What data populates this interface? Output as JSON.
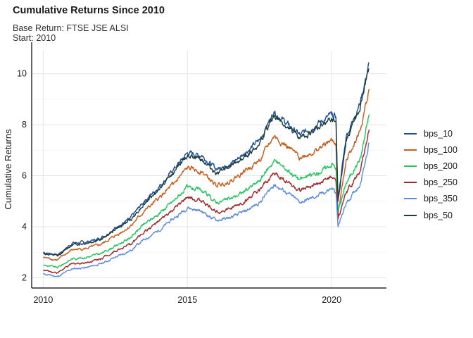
{
  "chart_data": {
    "type": "line",
    "title": "Cumulative Returns Since 2010",
    "subtitle_lines": [
      "Base Return: FTSE JSE ALSI",
      "Start: 2010"
    ],
    "xlabel": "",
    "ylabel": "Cumulative Returns",
    "xlim": [
      2009.6,
      2021.9
    ],
    "ylim": [
      1.6,
      10.9
    ],
    "x_ticks": [
      2010,
      2015,
      2020
    ],
    "y_ticks": [
      2,
      4,
      6,
      8,
      10
    ],
    "grid": true,
    "legend_position": "right",
    "x": [
      2010.0,
      2010.5,
      2011.0,
      2011.5,
      2012.0,
      2012.5,
      2013.0,
      2013.5,
      2014.0,
      2014.5,
      2015.0,
      2015.5,
      2016.0,
      2016.5,
      2017.0,
      2017.5,
      2018.0,
      2018.5,
      2018.9,
      2019.5,
      2020.0,
      2020.15,
      2020.22,
      2020.5,
      2021.0,
      2021.3
    ],
    "series": [
      {
        "name": "bps_10",
        "color": "#1f4e9b",
        "values": [
          3.0,
          2.9,
          3.35,
          3.4,
          3.55,
          3.95,
          4.3,
          5.0,
          5.55,
          6.2,
          6.9,
          6.8,
          6.25,
          6.45,
          6.9,
          7.4,
          8.5,
          8.0,
          7.6,
          8.0,
          8.4,
          8.3,
          5.1,
          7.5,
          8.9,
          10.4
        ]
      },
      {
        "name": "bps_100",
        "color": "#c95a1a",
        "values": [
          2.8,
          2.7,
          3.1,
          3.15,
          3.3,
          3.65,
          4.0,
          4.6,
          5.1,
          5.65,
          6.3,
          6.15,
          5.6,
          5.8,
          6.2,
          6.6,
          7.55,
          7.1,
          6.7,
          7.0,
          7.4,
          7.25,
          4.45,
          6.6,
          7.8,
          9.4
        ]
      },
      {
        "name": "bps_200",
        "color": "#22c55e",
        "values": [
          2.5,
          2.4,
          2.75,
          2.8,
          2.95,
          3.25,
          3.55,
          4.1,
          4.5,
          5.0,
          5.55,
          5.4,
          4.95,
          5.1,
          5.4,
          5.8,
          6.6,
          6.2,
          5.85,
          6.1,
          6.45,
          6.3,
          4.6,
          5.7,
          6.7,
          8.4
        ]
      },
      {
        "name": "bps_250",
        "color": "#a3262a",
        "values": [
          2.3,
          2.2,
          2.55,
          2.6,
          2.75,
          3.05,
          3.3,
          3.8,
          4.2,
          4.65,
          5.15,
          5.0,
          4.6,
          4.7,
          5.0,
          5.4,
          6.1,
          5.75,
          5.4,
          5.65,
          5.95,
          5.8,
          4.3,
          5.3,
          6.2,
          7.8
        ]
      },
      {
        "name": "bps_350",
        "color": "#5b8be0",
        "values": [
          2.15,
          2.05,
          2.35,
          2.4,
          2.55,
          2.8,
          3.05,
          3.5,
          3.85,
          4.3,
          4.75,
          4.6,
          4.25,
          4.35,
          4.6,
          4.95,
          5.65,
          5.3,
          4.95,
          5.2,
          5.5,
          5.35,
          4.0,
          4.9,
          5.7,
          7.3
        ]
      },
      {
        "name": "bps_50",
        "color": "#1e3d3a",
        "values": [
          2.95,
          2.85,
          3.3,
          3.35,
          3.5,
          3.9,
          4.25,
          4.9,
          5.45,
          6.1,
          6.8,
          6.65,
          6.1,
          6.35,
          6.75,
          7.25,
          8.35,
          7.85,
          7.45,
          7.85,
          8.25,
          8.15,
          5.0,
          7.35,
          8.75,
          10.2
        ]
      }
    ]
  }
}
